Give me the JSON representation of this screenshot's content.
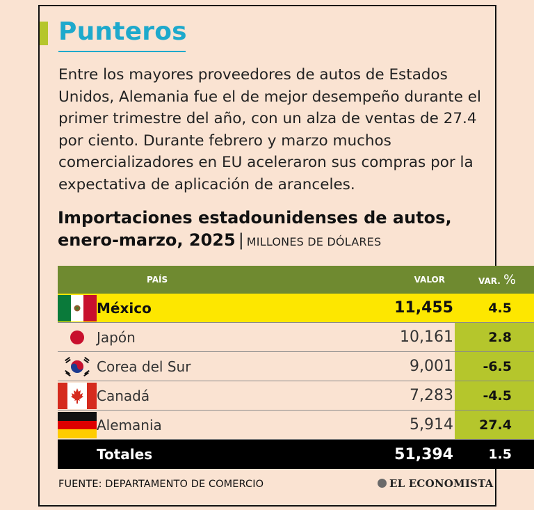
{
  "header": {
    "title": "Punteros"
  },
  "intro": "Entre los mayores proveedores de autos de Estados Unidos, Alemania fue el de mejor desempeño durante el primer trimestre del año, con un alza de ventas de 27.4 por ciento. Durante febrero y marzo muchos comercializadores en EU aceleraron sus compras por la expectativa de aplicación de aranceles.",
  "chart": {
    "title_line1": "Importaciones estadounidenses de autos,",
    "title_line2": "enero-marzo, 2025",
    "unit": "MILLONES DE DÓLARES"
  },
  "columns": {
    "country": "PAÍS",
    "value": "VALOR",
    "var": "VAR.",
    "var_pct": "%"
  },
  "chart_data": {
    "type": "table",
    "columns": [
      "PAÍS",
      "VALOR",
      "VAR. %"
    ],
    "rows": [
      {
        "country": "México",
        "value": "11,455",
        "var": "4.5",
        "flag": "mexico-flag",
        "highlight": true
      },
      {
        "country": "Japón",
        "value": "10,161",
        "var": "2.8",
        "flag": "japan-flag"
      },
      {
        "country": "Corea del Sur",
        "value": "9,001",
        "var": "-6.5",
        "flag": "south-korea-flag"
      },
      {
        "country": "Canadá",
        "value": "7,283",
        "var": "-4.5",
        "flag": "canada-flag"
      },
      {
        "country": "Alemania",
        "value": "5,914",
        "var": "27.4",
        "flag": "germany-flag"
      }
    ],
    "total": {
      "label": "Totales",
      "value": "51,394",
      "var": "1.5"
    }
  },
  "footer": {
    "source": "FUENTE: DEPARTAMENTO DE COMERCIO",
    "brand": "EL ECONOMISTA"
  },
  "colors": {
    "accent": "#1ea9cc",
    "header_green": "#6f8a30",
    "highlight_yellow": "#fde700",
    "var_cell_green": "#b5c62c",
    "background": "#fae3d2"
  }
}
